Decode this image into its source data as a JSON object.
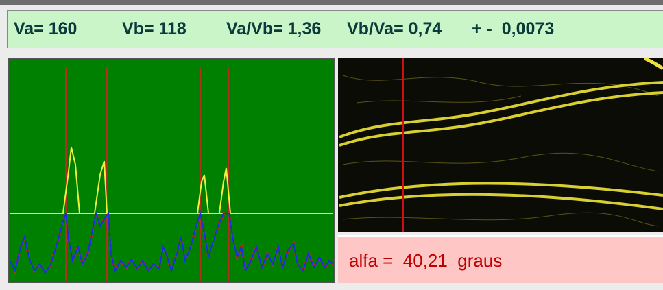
{
  "status_bar": {
    "items": [
      "Va= 160",
      "Vb= 118",
      "Va/Vb= 1,36",
      "Vb/Va= 0,74",
      "+ -  0,0073"
    ]
  },
  "angle_panel": {
    "text": "alfa =  40,21  graus"
  }
}
